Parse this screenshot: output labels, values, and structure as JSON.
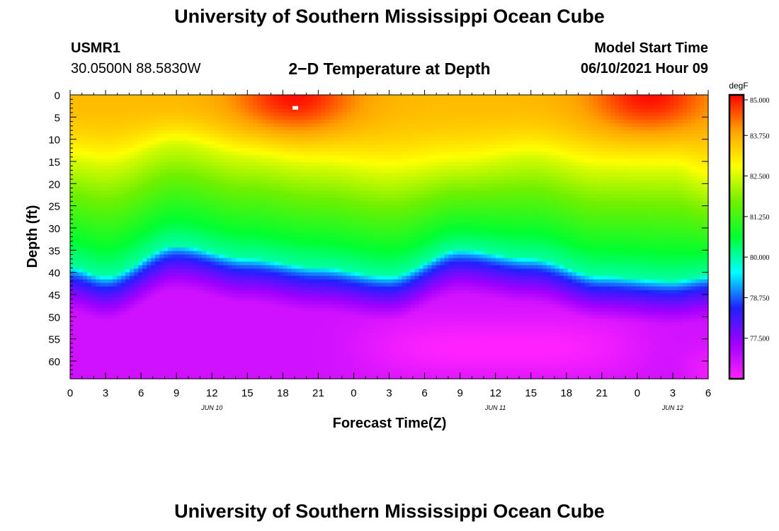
{
  "header": {
    "title": "University of Southern Mississippi Ocean Cube",
    "station_id": "USMR1",
    "coords": "30.0500N  88.5830W",
    "plot_title": "2−D Temperature at Depth",
    "model_label": "Model Start Time",
    "model_time": "06/10/2021 Hour 09"
  },
  "footer": {
    "title": "University of Southern Mississippi Ocean Cube"
  },
  "chart_data": {
    "type": "heatmap",
    "title": "2−D Temperature at Depth",
    "xlabel": "Forecast Time(Z)",
    "ylabel": "Depth (ft)",
    "x_ticks": [
      "0",
      "3",
      "6",
      "9",
      "12",
      "15",
      "18",
      "21",
      "0",
      "3",
      "6",
      "9",
      "12",
      "15",
      "18",
      "21",
      "0",
      "3",
      "6"
    ],
    "date_labels": [
      {
        "text": "JUN 10",
        "tick_index": 4
      },
      {
        "text": "JUN 11",
        "tick_index": 12
      },
      {
        "text": "JUN 12",
        "tick_index": 17
      }
    ],
    "y_ticks": [
      0,
      5,
      10,
      15,
      20,
      25,
      30,
      35,
      40,
      45,
      50,
      55,
      60
    ],
    "xlim_hours": [
      0,
      54
    ],
    "ylim_ft": [
      0,
      64
    ],
    "colorbar": {
      "unit": "degF",
      "range": [
        76.25,
        85.0
      ],
      "tick_values": [
        85.0,
        83.75,
        82.5,
        81.25,
        80.0,
        78.75,
        77.5
      ],
      "tick_labels": [
        "85.000",
        "83.750",
        "82.500",
        "81.250",
        "80.000",
        "78.750",
        "77.500"
      ],
      "colors": [
        "#ff22ff",
        "#a000ff",
        "#2020ff",
        "#00ffff",
        "#00ff30",
        "#70f000",
        "#ffff00",
        "#ffa000",
        "#ff0000"
      ]
    },
    "isotherm_82_5_depth_ft": {
      "hours": [
        0,
        3,
        9,
        15,
        21,
        27,
        33,
        39,
        45,
        51,
        54
      ],
      "depths": [
        15,
        16,
        11,
        14,
        16,
        18,
        16,
        14,
        17,
        17,
        20
      ]
    },
    "isotherm_80_depth_ft": {
      "hours": [
        0,
        3,
        9,
        15,
        21,
        27,
        33,
        39,
        45,
        51,
        54
      ],
      "depths": [
        39,
        41,
        34,
        37,
        39,
        41,
        35,
        37,
        41,
        42,
        41
      ]
    },
    "surface_max_hours": [
      19,
      49
    ],
    "surface_max_depth_ft": 3,
    "bottom_min_hour_span": [
      25,
      48
    ],
    "bottom_min_depth_ft": 57,
    "surface_temp_degF": 83.6,
    "bottom_temp_degF": 76.8
  },
  "colors": {
    "axis": "#000000",
    "marker": "#ffffff"
  }
}
